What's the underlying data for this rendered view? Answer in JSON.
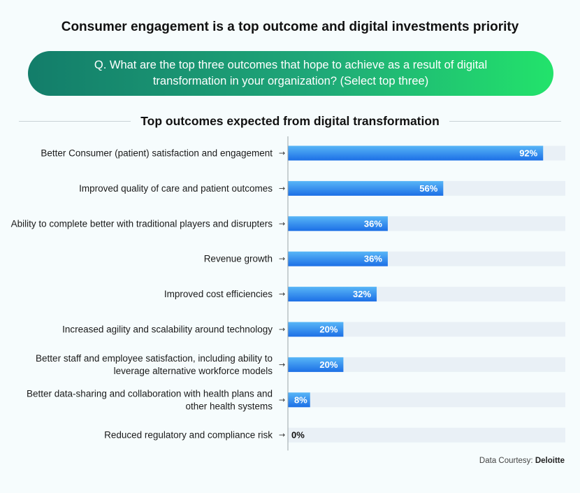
{
  "header": {
    "title": "Consumer engagement is a top outcome and digital investments priority",
    "question": "Q. What are the top three outcomes that hope to achieve as a result of digital transformation in your organization? (Select top three)"
  },
  "section_title": "Top outcomes expected from digital transformation",
  "chart_data": {
    "type": "bar",
    "orientation": "horizontal",
    "title": "Top outcomes expected from digital transformation",
    "categories": [
      "Better Consumer (patient) satisfaction and engagement",
      "Improved quality of care and patient outcomes",
      "Ability to complete better with traditional players and disrupters",
      "Revenue growth",
      "Improved cost efficiencies",
      "Increased agility and scalability around technology",
      "Better staff and employee satisfaction, including ability to leverage alternative workforce models",
      "Better data-sharing and collaboration with health plans and other health systems",
      "Reduced regulatory and compliance risk"
    ],
    "values": [
      92,
      56,
      36,
      36,
      32,
      20,
      20,
      8,
      0
    ],
    "value_labels": [
      "92%",
      "56%",
      "36%",
      "36%",
      "32%",
      "20%",
      "20%",
      "8%",
      "0%"
    ],
    "xlim": [
      0,
      100
    ],
    "grid": false,
    "colors": {
      "bar_start": "#58b6f7",
      "bar_end": "#1c6fe6",
      "track": "#e9f0f6",
      "label_on_bar": "#ffffff",
      "label_outside": "#111111"
    }
  },
  "footer": {
    "prefix": "Data Courtesy: ",
    "source": "Deloitte"
  }
}
